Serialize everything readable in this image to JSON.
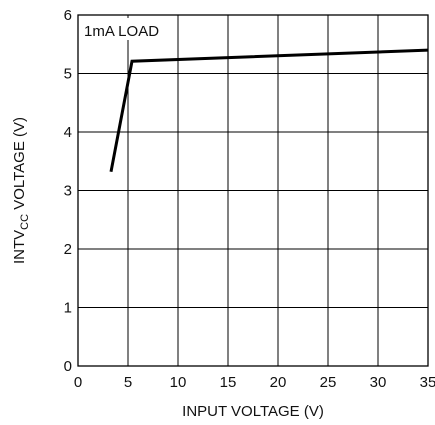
{
  "chart_data": {
    "type": "line",
    "title": "",
    "xlabel": "INPUT VOLTAGE (V)",
    "ylabel": {
      "prefix": "INTV",
      "subscript": "CC",
      "suffix": " VOLTAGE (V)"
    },
    "xlim": [
      0,
      35
    ],
    "ylim": [
      0,
      6
    ],
    "xticks": [
      0,
      5,
      10,
      15,
      20,
      25,
      30,
      35
    ],
    "yticks": [
      0,
      1,
      2,
      3,
      4,
      5,
      6
    ],
    "grid": true,
    "annotation": "1mA LOAD",
    "series": [
      {
        "color": "#000000",
        "x": [
          3.3,
          5.4,
          35
        ],
        "y": [
          3.32,
          5.21,
          5.4
        ]
      }
    ]
  }
}
